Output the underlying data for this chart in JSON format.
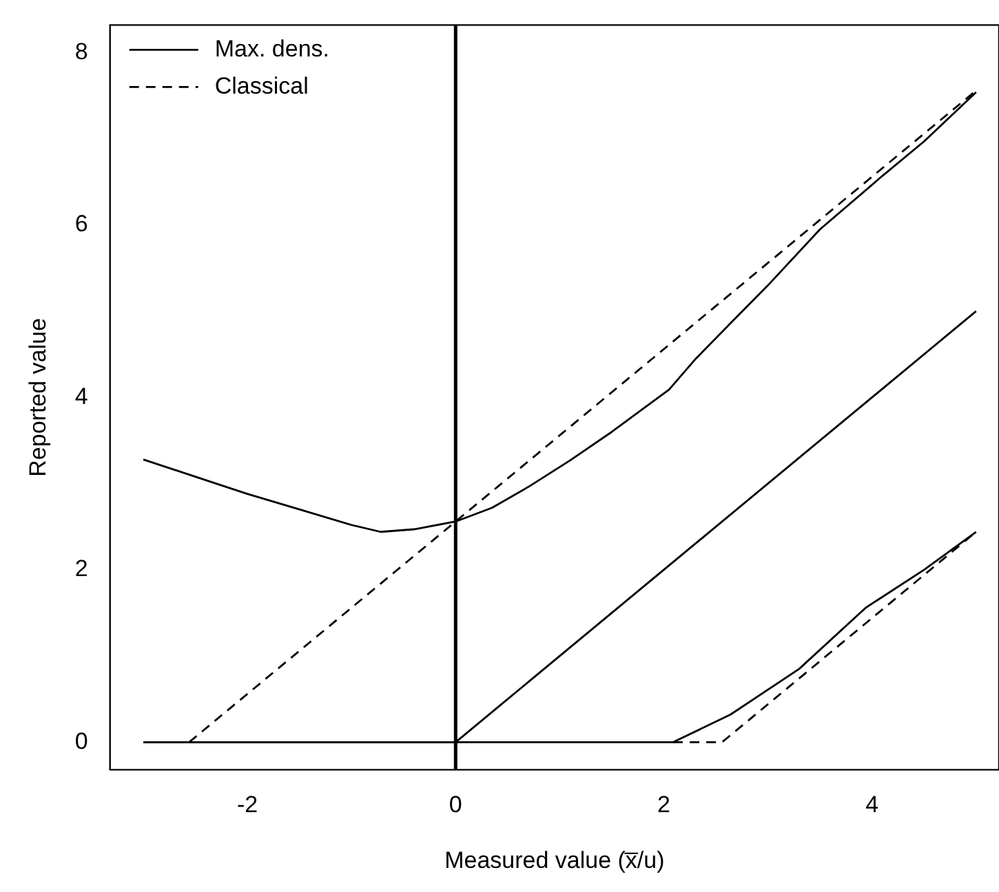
{
  "chart_data": {
    "type": "line",
    "xlabel": "Measured value (x̅/u)",
    "ylabel": "Reported value",
    "xlim": [
      -3.32,
      5.22
    ],
    "ylim": [
      -0.32,
      8.32
    ],
    "xticks": [
      -2,
      0,
      2,
      4
    ],
    "yticks": [
      0,
      2,
      4,
      6,
      8
    ],
    "grid": false,
    "legend": "top left",
    "marker": "none",
    "ref_lines": [
      {
        "axis": "x",
        "value": 0,
        "color": "#000000"
      }
    ],
    "series": [
      {
        "name": "Max. dens.",
        "color": "#000000",
        "line_style": "solid",
        "x": [
          -3,
          -2.5,
          -2,
          -1.5,
          -1,
          -0.72,
          -0.4,
          0,
          0.35,
          0.71,
          1.1,
          1.5,
          2.05,
          2.3,
          2.64,
          3,
          3.5,
          4.09,
          4.5,
          5
        ],
        "values": [
          3.28,
          3.08,
          2.88,
          2.7,
          2.52,
          2.44,
          2.47,
          2.56,
          2.72,
          2.97,
          3.27,
          3.6,
          4.09,
          4.44,
          4.86,
          5.3,
          5.95,
          6.56,
          6.97,
          7.54
        ]
      },
      {
        "color": "#000000",
        "line_style": "solid",
        "x": [
          -3,
          0,
          5
        ],
        "values": [
          0,
          0,
          5
        ]
      },
      {
        "color": "#000000",
        "line_style": "solid",
        "x": [
          -3,
          2.09,
          2.64,
          3.3,
          3.94,
          4.5,
          5
        ],
        "values": [
          0,
          0,
          0.32,
          0.85,
          1.56,
          2.0,
          2.44
        ]
      },
      {
        "name": "Classical",
        "color": "#000000",
        "line_style": "dashed",
        "x": [
          -2.56,
          5
        ],
        "values": [
          0,
          7.56
        ]
      },
      {
        "color": "#000000",
        "line_style": "dashed",
        "x": [
          2.09,
          2.56,
          5
        ],
        "values": [
          0,
          0,
          2.44
        ]
      }
    ]
  }
}
